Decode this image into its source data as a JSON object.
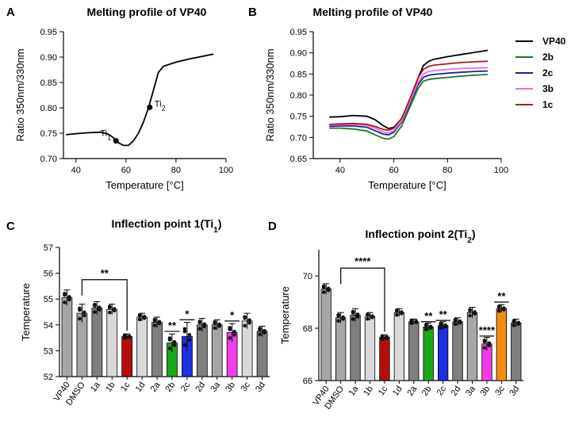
{
  "panels": [
    {
      "letter": "A",
      "title": "Melting profile of VP40",
      "type": "line",
      "xlabel": "Temperature [°C]",
      "ylabel": "Ratio 350nm/330nm",
      "xlim": [
        35,
        100
      ],
      "ylim": [
        0.7,
        0.95
      ],
      "xticks": [
        "40",
        "60",
        "80",
        "100"
      ],
      "yticks": [
        "0.70",
        "0.75",
        "0.80",
        "0.85",
        "0.90",
        "0.95"
      ],
      "series": [
        {
          "name": "VP40",
          "color": "#000000",
          "x": [
            36,
            40,
            45,
            50,
            53,
            55,
            57,
            59,
            61,
            63,
            65,
            67,
            69,
            71,
            73,
            75,
            80,
            85,
            90,
            95
          ],
          "y": [
            0.747,
            0.749,
            0.751,
            0.752,
            0.748,
            0.741,
            0.731,
            0.726,
            0.726,
            0.735,
            0.75,
            0.772,
            0.8,
            0.835,
            0.87,
            0.882,
            0.89,
            0.896,
            0.901,
            0.906
          ]
        }
      ],
      "points": [
        {
          "label": "Ti",
          "sub": "1",
          "x": 56,
          "y": 0.735
        },
        {
          "label": "Ti",
          "sub": "2",
          "x": 69.5,
          "y": 0.801
        }
      ]
    },
    {
      "letter": "B",
      "title": "Melting profile of VP40",
      "type": "line",
      "xlabel": "Temperature [°C]",
      "ylabel": "Ratio 350nm/330nm",
      "xlim": [
        30,
        100
      ],
      "ylim": [
        0.65,
        0.95
      ],
      "xticks": [
        "40",
        "60",
        "80",
        "100"
      ],
      "yticks": [
        "0.65",
        "0.70",
        "0.75",
        "0.80",
        "0.85",
        "0.90",
        "0.95"
      ],
      "series": [
        {
          "name": "VP40",
          "color": "#000000",
          "x": [
            36,
            40,
            45,
            50,
            53,
            56,
            58,
            60,
            63,
            66,
            69,
            71,
            73,
            75,
            80,
            85,
            90,
            95
          ],
          "y": [
            0.748,
            0.749,
            0.752,
            0.75,
            0.742,
            0.728,
            0.721,
            0.724,
            0.745,
            0.79,
            0.84,
            0.87,
            0.88,
            0.885,
            0.891,
            0.896,
            0.901,
            0.906
          ]
        },
        {
          "name": "2b",
          "color": "#1a7a1a",
          "x": [
            36,
            40,
            45,
            50,
            53,
            56,
            58,
            60,
            63,
            66,
            69,
            71,
            73,
            75,
            80,
            85,
            90,
            95
          ],
          "y": [
            0.722,
            0.722,
            0.72,
            0.715,
            0.706,
            0.698,
            0.696,
            0.702,
            0.728,
            0.772,
            0.815,
            0.833,
            0.837,
            0.839,
            0.842,
            0.845,
            0.847,
            0.849
          ]
        },
        {
          "name": "2c",
          "color": "#2020a0",
          "x": [
            36,
            40,
            45,
            50,
            53,
            56,
            58,
            60,
            63,
            66,
            69,
            71,
            73,
            75,
            80,
            85,
            90,
            95
          ],
          "y": [
            0.726,
            0.727,
            0.727,
            0.724,
            0.716,
            0.708,
            0.706,
            0.712,
            0.737,
            0.78,
            0.824,
            0.842,
            0.847,
            0.849,
            0.852,
            0.854,
            0.856,
            0.857
          ]
        },
        {
          "name": "3b",
          "color": "#f06ad8",
          "x": [
            36,
            40,
            45,
            50,
            53,
            56,
            58,
            60,
            63,
            66,
            69,
            71,
            73,
            75,
            80,
            85,
            90,
            95
          ],
          "y": [
            0.729,
            0.73,
            0.731,
            0.729,
            0.722,
            0.713,
            0.71,
            0.716,
            0.74,
            0.784,
            0.83,
            0.85,
            0.856,
            0.858,
            0.861,
            0.863,
            0.864,
            0.865
          ]
        },
        {
          "name": "1c",
          "color": "#a51c24",
          "x": [
            36,
            40,
            45,
            50,
            53,
            56,
            58,
            60,
            63,
            66,
            69,
            71,
            73,
            75,
            80,
            85,
            90,
            95
          ],
          "y": [
            0.731,
            0.732,
            0.733,
            0.731,
            0.726,
            0.719,
            0.717,
            0.722,
            0.746,
            0.792,
            0.84,
            0.861,
            0.868,
            0.871,
            0.874,
            0.877,
            0.879,
            0.88
          ]
        }
      ]
    },
    {
      "letter": "C",
      "title": "Inflection point 1(Ti",
      "title_sub": "1",
      "title_end": ")",
      "type": "bar",
      "ylabel": "Temperature",
      "ylim": [
        52,
        57
      ],
      "yticks": [
        "52",
        "53",
        "54",
        "55",
        "56",
        "57"
      ],
      "categories": [
        "VP40",
        "DMSO",
        "1a",
        "1b",
        "1c",
        "1d",
        "2a",
        "2b",
        "2c",
        "2d",
        "3a",
        "3b",
        "3c",
        "3d"
      ],
      "values": [
        55.05,
        54.45,
        54.65,
        54.6,
        53.55,
        54.3,
        54.1,
        53.3,
        53.55,
        54.0,
        54.0,
        53.7,
        54.15,
        53.75
      ],
      "errors": [
        0.3,
        0.35,
        0.25,
        0.2,
        0.1,
        0.15,
        0.2,
        0.35,
        0.55,
        0.25,
        0.2,
        0.35,
        0.3,
        0.2
      ],
      "colors": [
        "#a6a6a6",
        "#a6a6a6",
        "#7f7f7f",
        "#d9d9d9",
        "#b50d0d",
        "#d9d9d9",
        "#7f7f7f",
        "#18a818",
        "#1f2ee0",
        "#7f7f7f",
        "#a6a6a6",
        "#f23ce8",
        "#d9d9d9",
        "#7f7f7f"
      ],
      "annotations": [
        {
          "text": "**",
          "from": 1,
          "to": 4,
          "bracket": true,
          "y": 55.75
        },
        {
          "text": "**",
          "index": 7,
          "y": 53.75
        },
        {
          "text": "*",
          "index": 8,
          "y": 54.2
        },
        {
          "text": "*",
          "index": 11,
          "y": 54.15
        }
      ]
    },
    {
      "letter": "D",
      "title": "Inflection point 2(Ti",
      "title_sub": "2",
      "title_end": ")",
      "type": "bar",
      "ylabel": "Temperature",
      "ylim": [
        66,
        71
      ],
      "yticks": [
        "66",
        "68",
        "70"
      ],
      "categories": [
        "VP40",
        "DMSO",
        "1a",
        "1b",
        "1c",
        "1d",
        "2a",
        "2b",
        "2c",
        "2d",
        "3a",
        "3b",
        "3c",
        "3d"
      ],
      "values": [
        69.5,
        68.4,
        68.5,
        68.45,
        67.65,
        68.6,
        68.25,
        68.05,
        68.1,
        68.25,
        68.6,
        67.4,
        68.75,
        68.2
      ],
      "errors": [
        0.2,
        0.2,
        0.25,
        0.15,
        0.1,
        0.15,
        0.1,
        0.15,
        0.15,
        0.15,
        0.2,
        0.25,
        0.15,
        0.15
      ],
      "colors": [
        "#a6a6a6",
        "#a6a6a6",
        "#7f7f7f",
        "#d9d9d9",
        "#b50d0d",
        "#d9d9d9",
        "#7f7f7f",
        "#18a818",
        "#1f2ee0",
        "#7f7f7f",
        "#a6a6a6",
        "#f23ce8",
        "#f28c14",
        "#7f7f7f"
      ],
      "annotations": [
        {
          "text": "****",
          "from": 1,
          "to": 4,
          "bracket": true,
          "y": 70.3
        },
        {
          "text": "**",
          "index": 7,
          "y": 68.25
        },
        {
          "text": "**",
          "index": 8,
          "y": 68.3
        },
        {
          "text": "****",
          "index": 11,
          "y": 67.7
        },
        {
          "text": "**",
          "index": 12,
          "y": 69.0
        }
      ]
    }
  ]
}
